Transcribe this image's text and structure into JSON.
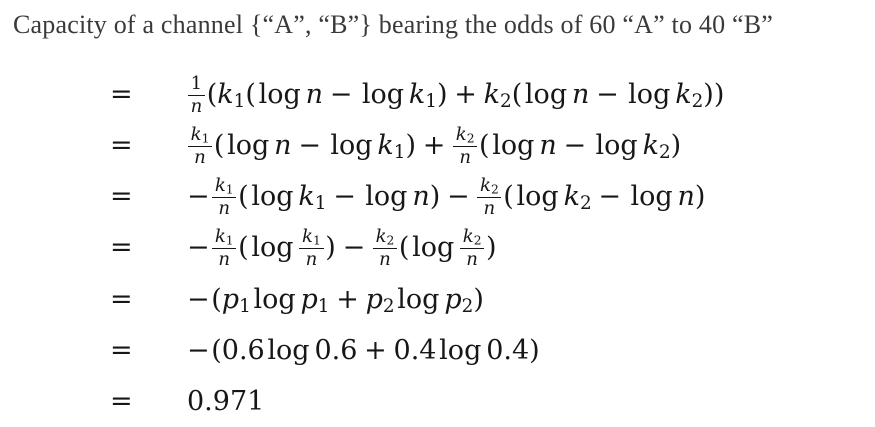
{
  "title": "Capacity of a channel {“A”, “B”} bearing the odds of 60 “A” to 40 “B”",
  "equations": {
    "equals_sign": "=",
    "rows": [
      {
        "plain": "= 1/n (k₁(log n − log k₁) + k₂(log n − log k₂))",
        "tokens": [
          {
            "frac": {
              "num": [
                {
                  "text": "1"
                }
              ],
              "den": [
                {
                  "var": "n"
                }
              ]
            }
          },
          {
            "text": "("
          },
          {
            "var": "k",
            "sub": "1"
          },
          {
            "text": "("
          },
          {
            "fn": "log"
          },
          {
            "var": "n"
          },
          {
            "op": "−"
          },
          {
            "fn": "log"
          },
          {
            "var": "k",
            "sub": "1"
          },
          {
            "text": ")"
          },
          {
            "op": "+"
          },
          {
            "var": "k",
            "sub": "2"
          },
          {
            "text": "("
          },
          {
            "fn": "log"
          },
          {
            "var": "n"
          },
          {
            "op": "−"
          },
          {
            "fn": "log"
          },
          {
            "var": "k",
            "sub": "2"
          },
          {
            "text": "))"
          }
        ]
      },
      {
        "plain": "= k₁/n (log n − log k₁) + k₂/n (log n − log k₂)",
        "tokens": [
          {
            "frac": {
              "num": [
                {
                  "var": "k",
                  "sub": "1"
                }
              ],
              "den": [
                {
                  "var": "n"
                }
              ]
            }
          },
          {
            "text": "("
          },
          {
            "fn": "log"
          },
          {
            "var": "n"
          },
          {
            "op": "−"
          },
          {
            "fn": "log"
          },
          {
            "var": "k",
            "sub": "1"
          },
          {
            "text": ")"
          },
          {
            "op": "+"
          },
          {
            "frac": {
              "num": [
                {
                  "var": "k",
                  "sub": "2"
                }
              ],
              "den": [
                {
                  "var": "n"
                }
              ]
            }
          },
          {
            "text": "("
          },
          {
            "fn": "log"
          },
          {
            "var": "n"
          },
          {
            "op": "−"
          },
          {
            "fn": "log"
          },
          {
            "var": "k",
            "sub": "2"
          },
          {
            "text": ")"
          }
        ]
      },
      {
        "plain": "= −k₁/n (log k₁ − log n) − k₂/n (log k₂ − log n)",
        "tokens": [
          {
            "uop": "−"
          },
          {
            "frac": {
              "num": [
                {
                  "var": "k",
                  "sub": "1"
                }
              ],
              "den": [
                {
                  "var": "n"
                }
              ]
            }
          },
          {
            "text": "("
          },
          {
            "fn": "log"
          },
          {
            "var": "k",
            "sub": "1"
          },
          {
            "op": "−"
          },
          {
            "fn": "log"
          },
          {
            "var": "n"
          },
          {
            "text": ")"
          },
          {
            "op": "−"
          },
          {
            "frac": {
              "num": [
                {
                  "var": "k",
                  "sub": "2"
                }
              ],
              "den": [
                {
                  "var": "n"
                }
              ]
            }
          },
          {
            "text": "("
          },
          {
            "fn": "log"
          },
          {
            "var": "k",
            "sub": "2"
          },
          {
            "op": "−"
          },
          {
            "fn": "log"
          },
          {
            "var": "n"
          },
          {
            "text": ")"
          }
        ]
      },
      {
        "plain": "= −k₁/n (log k₁/n) − k₂/n (log k₂/n)",
        "tokens": [
          {
            "uop": "−"
          },
          {
            "frac": {
              "num": [
                {
                  "var": "k",
                  "sub": "1"
                }
              ],
              "den": [
                {
                  "var": "n"
                }
              ]
            }
          },
          {
            "text": "("
          },
          {
            "fn": "log"
          },
          {
            "frac": {
              "num": [
                {
                  "var": "k",
                  "sub": "1"
                }
              ],
              "den": [
                {
                  "var": "n"
                }
              ]
            }
          },
          {
            "text": ")"
          },
          {
            "op": "−"
          },
          {
            "frac": {
              "num": [
                {
                  "var": "k",
                  "sub": "2"
                }
              ],
              "den": [
                {
                  "var": "n"
                }
              ]
            }
          },
          {
            "text": "("
          },
          {
            "fn": "log"
          },
          {
            "frac": {
              "num": [
                {
                  "var": "k",
                  "sub": "2"
                }
              ],
              "den": [
                {
                  "var": "n"
                }
              ]
            }
          },
          {
            "text": ")"
          }
        ]
      },
      {
        "plain": "= −(p₁ log p₁ + p₂ log p₂)",
        "tokens": [
          {
            "uop": "−"
          },
          {
            "text": "("
          },
          {
            "var": "p",
            "sub": "1"
          },
          {
            "fn": "log"
          },
          {
            "var": "p",
            "sub": "1"
          },
          {
            "op": "+"
          },
          {
            "var": "p",
            "sub": "2"
          },
          {
            "fn": "log"
          },
          {
            "var": "p",
            "sub": "2"
          },
          {
            "text": ")"
          }
        ]
      },
      {
        "plain": "= −(0.6 log 0.6 + 0.4 log 0.4)",
        "tokens": [
          {
            "uop": "−"
          },
          {
            "text": "(0.6"
          },
          {
            "fn": "log"
          },
          {
            "text": "0.6"
          },
          {
            "op": "+"
          },
          {
            "text": "0.4"
          },
          {
            "fn": "log"
          },
          {
            "text": "0.4)"
          }
        ]
      },
      {
        "plain": "= 0.971",
        "tokens": [
          {
            "text": "0.971"
          }
        ]
      }
    ]
  },
  "colors": {
    "background": "#ffffff",
    "title_text": "#3a3a3a",
    "math_text": "#171717"
  }
}
